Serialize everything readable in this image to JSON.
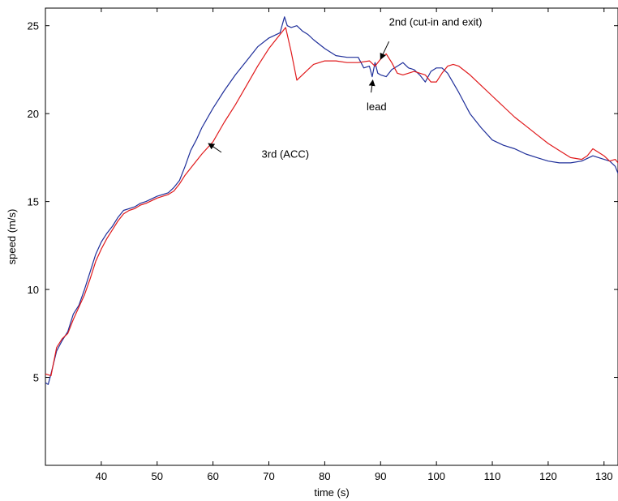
{
  "chart_data": {
    "type": "line",
    "title": "",
    "xlabel": "time (s)",
    "ylabel": "speed (m/s)",
    "xlim": [
      30,
      132.5
    ],
    "ylim": [
      0,
      26
    ],
    "xticks": [
      40,
      50,
      60,
      70,
      80,
      90,
      100,
      110,
      120,
      130
    ],
    "yticks": [
      5,
      10,
      15,
      20,
      25
    ],
    "grid": false,
    "series": [
      {
        "color": "#1f2f9a",
        "x": [
          30,
          30.5,
          31,
          32,
          33,
          34,
          35,
          36,
          37,
          38,
          39,
          40,
          41,
          42,
          43,
          44,
          45,
          46,
          47,
          48,
          50,
          52,
          53,
          54,
          55,
          56,
          57,
          58,
          60,
          62,
          64,
          66,
          68,
          70,
          72,
          72.8,
          73.3,
          74,
          75,
          76,
          77,
          78,
          80,
          82,
          84,
          86,
          87,
          88,
          88.5,
          89,
          89.5,
          90,
          91,
          92,
          93,
          94,
          95,
          96,
          97,
          98,
          99,
          100,
          101,
          102,
          104,
          106,
          108,
          110,
          112,
          114,
          116,
          118,
          120,
          122,
          124,
          126,
          128,
          130,
          131,
          132,
          132.5
        ],
        "y": [
          4.7,
          4.6,
          5.2,
          6.5,
          7.1,
          7.6,
          8.6,
          9.1,
          10.0,
          11.0,
          12.0,
          12.7,
          13.2,
          13.6,
          14.1,
          14.5,
          14.6,
          14.7,
          14.9,
          15.0,
          15.3,
          15.5,
          15.8,
          16.2,
          17.0,
          17.9,
          18.5,
          19.2,
          20.3,
          21.3,
          22.2,
          23.0,
          23.8,
          24.3,
          24.6,
          25.5,
          25.0,
          24.9,
          25.0,
          24.7,
          24.5,
          24.2,
          23.7,
          23.3,
          23.2,
          23.2,
          22.6,
          22.7,
          22.1,
          22.9,
          22.3,
          22.2,
          22.1,
          22.5,
          22.7,
          22.9,
          22.6,
          22.5,
          22.2,
          21.8,
          22.4,
          22.6,
          22.6,
          22.3,
          21.2,
          20.0,
          19.2,
          18.5,
          18.2,
          18.0,
          17.7,
          17.5,
          17.3,
          17.2,
          17.2,
          17.3,
          17.6,
          17.4,
          17.3,
          17.0,
          16.6
        ]
      },
      {
        "color": "#e0191b",
        "x": [
          30,
          31,
          32,
          33,
          34,
          35,
          36,
          37,
          38,
          39,
          40,
          41,
          42,
          43,
          44,
          45,
          46,
          47,
          48,
          50,
          52,
          53,
          54,
          55,
          56,
          58,
          60,
          62,
          64,
          66,
          68,
          70,
          72,
          73,
          74,
          75,
          76,
          78,
          80,
          82,
          84,
          86,
          88,
          89,
          90,
          91,
          92,
          93,
          94,
          96,
          98,
          99,
          100,
          101,
          102,
          103,
          104,
          106,
          108,
          110,
          112,
          114,
          116,
          118,
          120,
          122,
          124,
          126,
          127,
          128,
          129,
          130,
          131,
          132,
          132.5
        ],
        "y": [
          5.2,
          5.1,
          6.7,
          7.2,
          7.5,
          8.3,
          9.0,
          9.7,
          10.6,
          11.6,
          12.3,
          12.9,
          13.4,
          13.9,
          14.3,
          14.5,
          14.6,
          14.8,
          14.9,
          15.2,
          15.4,
          15.6,
          16.0,
          16.5,
          16.9,
          17.7,
          18.4,
          19.5,
          20.5,
          21.6,
          22.7,
          23.7,
          24.5,
          24.9,
          23.5,
          21.9,
          22.2,
          22.8,
          23.0,
          23.0,
          22.9,
          22.9,
          23.0,
          22.7,
          23.1,
          23.4,
          22.9,
          22.3,
          22.2,
          22.4,
          22.2,
          21.8,
          21.8,
          22.3,
          22.7,
          22.8,
          22.7,
          22.2,
          21.6,
          21.0,
          20.4,
          19.8,
          19.3,
          18.8,
          18.3,
          17.9,
          17.5,
          17.4,
          17.6,
          18.0,
          17.8,
          17.6,
          17.3,
          17.4,
          17.2
        ]
      }
    ],
    "annotations": [
      {
        "text": "3rd (ACC)",
        "x": 68.7,
        "y": 17.5,
        "arrow_from": [
          61.5,
          17.8
        ],
        "arrow_to": [
          59.2,
          18.3
        ]
      },
      {
        "text": "2nd (cut-in and exit)",
        "x": 91.5,
        "y": 25.0,
        "arrow_from": [
          91.5,
          24.1
        ],
        "arrow_to": [
          90.0,
          23.1
        ]
      },
      {
        "text": "lead",
        "x": 87.5,
        "y": 20.2,
        "arrow_from": [
          88.3,
          21.2
        ],
        "arrow_to": [
          88.6,
          21.9
        ]
      }
    ]
  }
}
